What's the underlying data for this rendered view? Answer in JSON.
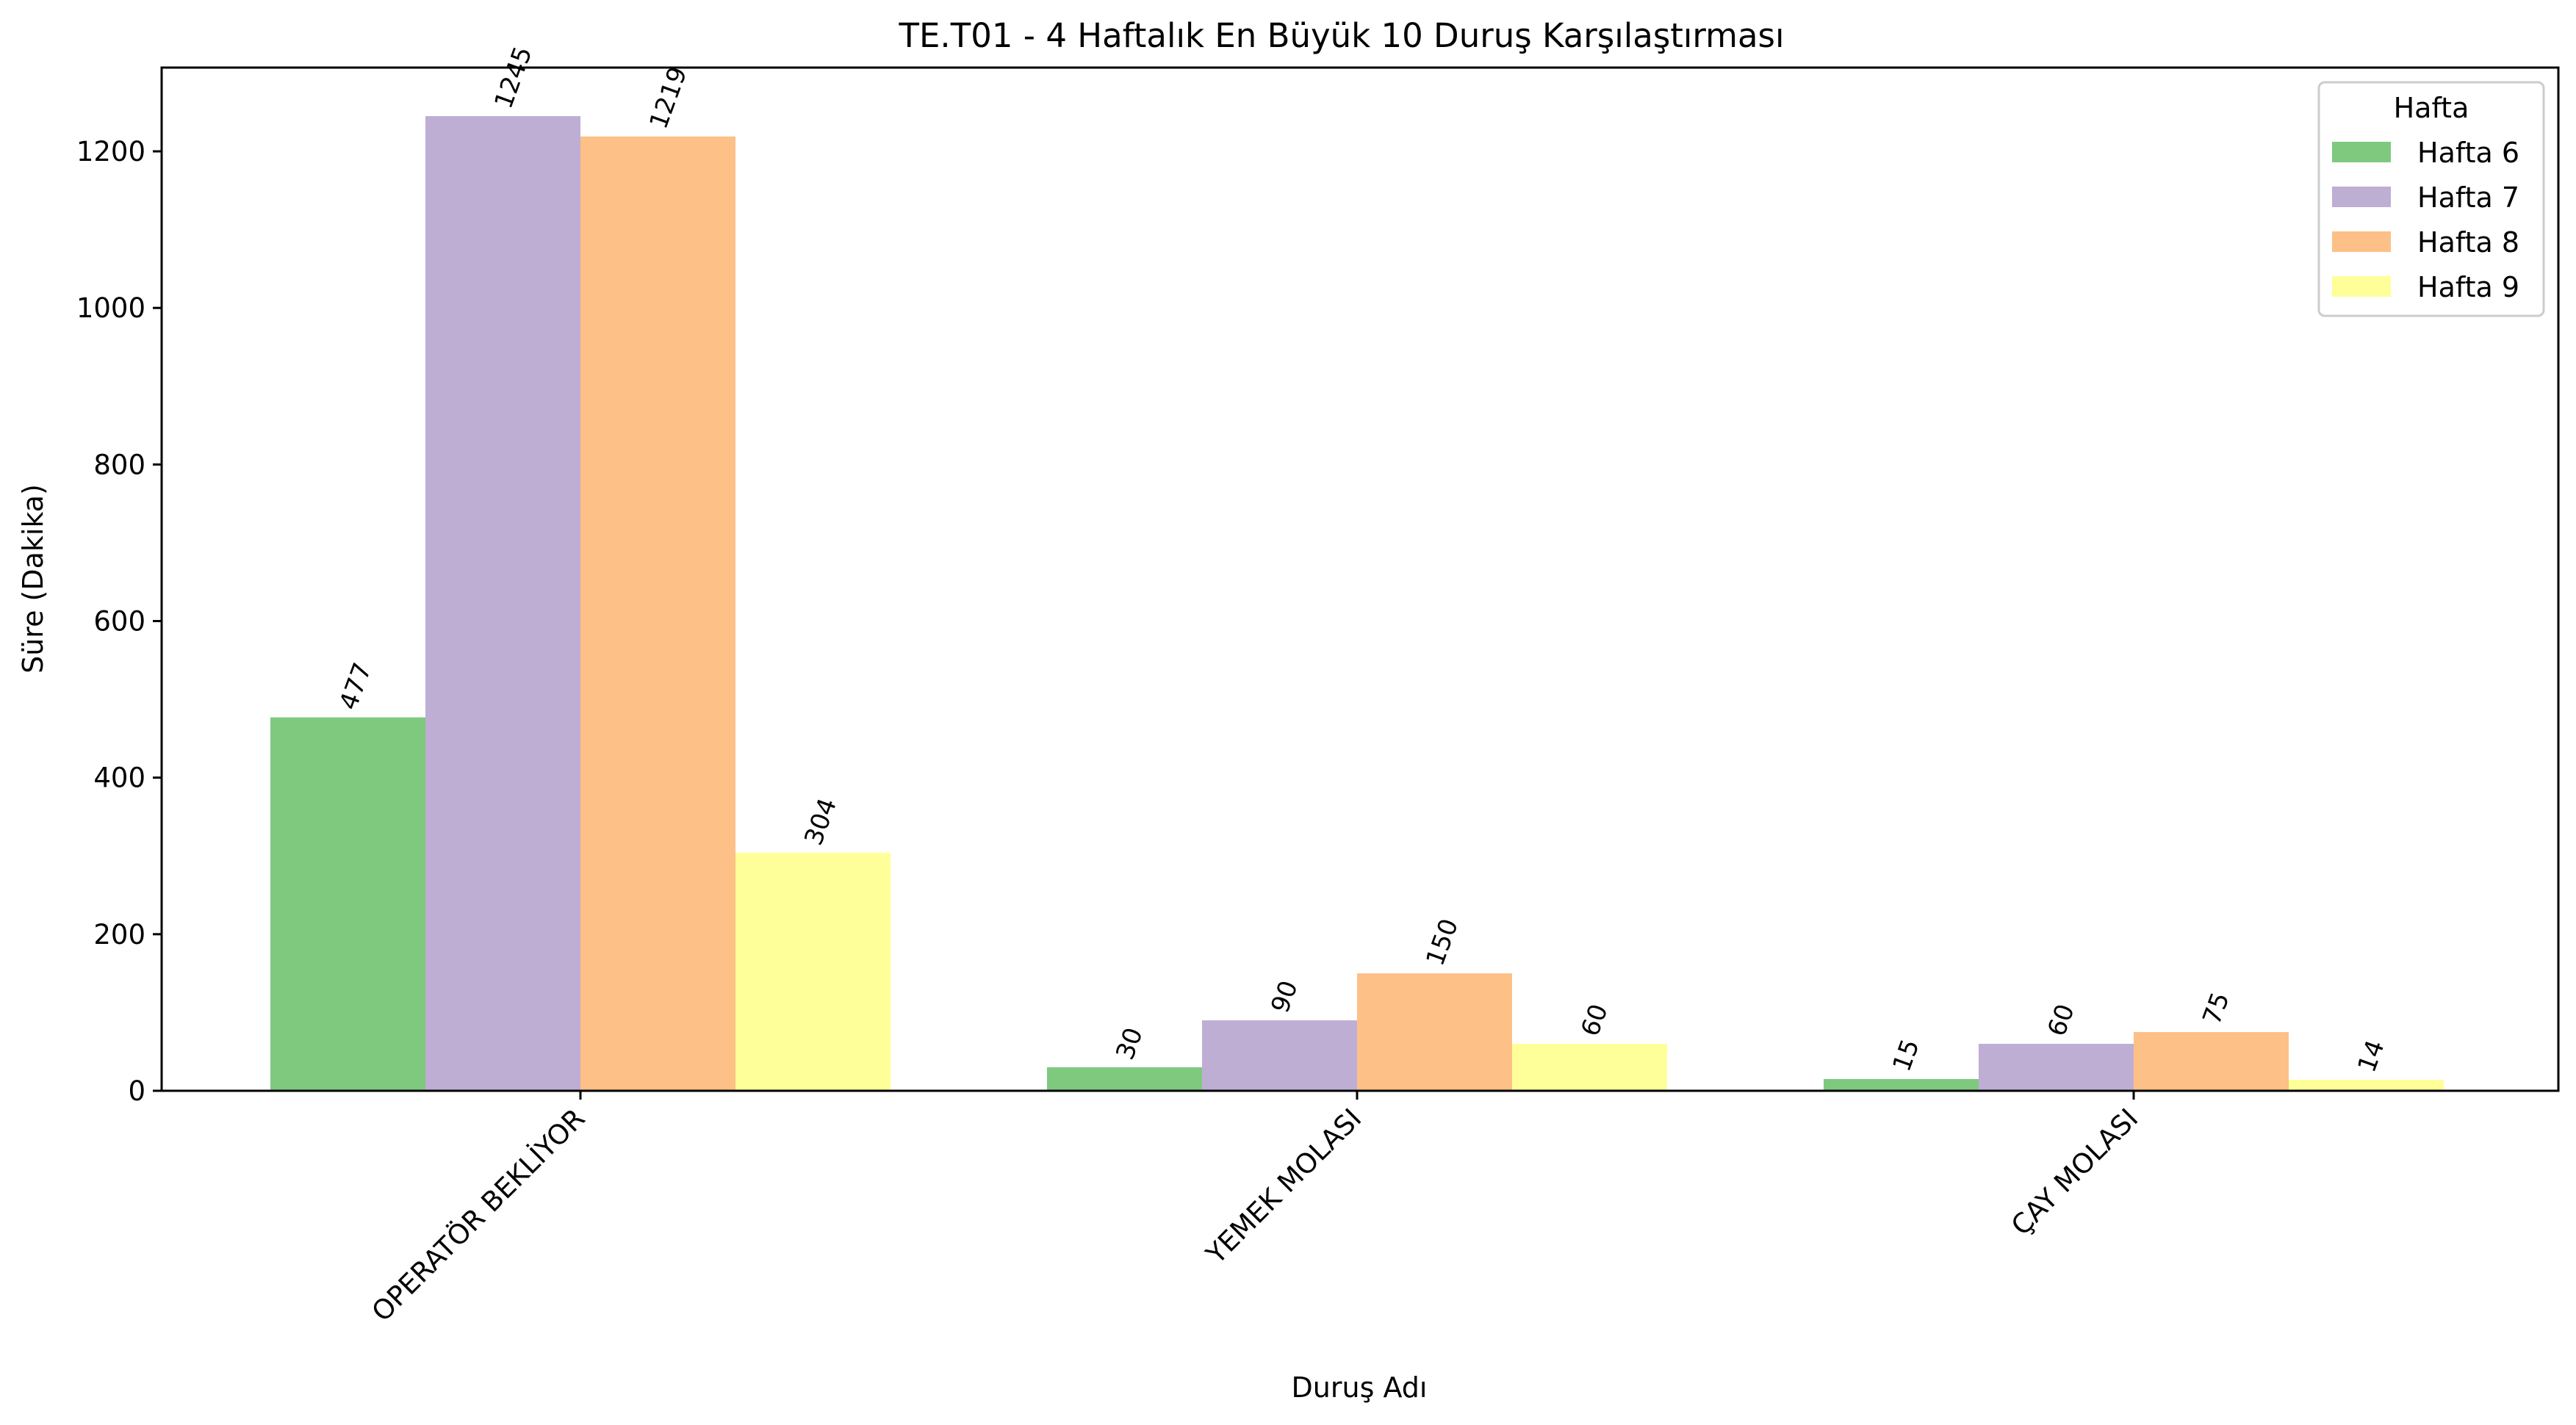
{
  "chart_data": {
    "type": "bar",
    "title": "TE.T01 - 4 Haftalık En Büyük 10 Duruş Karşılaştırması",
    "xlabel": "Duruş Adı",
    "ylabel": "Süre (Dakika)",
    "categories": [
      "OPERATÖR BEKLİYOR",
      "YEMEK MOLASI",
      "ÇAY MOLASI"
    ],
    "series": [
      {
        "name": "Hafta 6",
        "color": "#7fc97f",
        "values": [
          477,
          30,
          15
        ]
      },
      {
        "name": "Hafta 7",
        "color": "#beaed4",
        "values": [
          1245,
          90,
          60
        ]
      },
      {
        "name": "Hafta 8",
        "color": "#fdc086",
        "values": [
          1219,
          150,
          75
        ]
      },
      {
        "name": "Hafta 9",
        "color": "#ffff99",
        "values": [
          304,
          60,
          14
        ]
      }
    ],
    "ylim": [
      0,
      1307
    ],
    "yticks": [
      0,
      200,
      400,
      600,
      800,
      1000,
      1200
    ],
    "legend": {
      "title": "Hafta",
      "position": "top-right"
    },
    "grid": false
  }
}
